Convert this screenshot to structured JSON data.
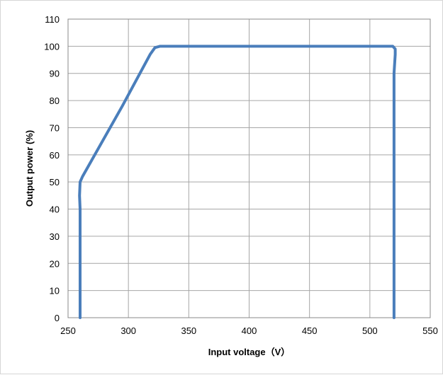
{
  "chart_data": {
    "type": "line",
    "title": "",
    "xlabel": "Input voltage（V）",
    "ylabel": "Output power (%)",
    "xlim": [
      250,
      550
    ],
    "ylim": [
      0,
      110
    ],
    "xticks": [
      250,
      300,
      350,
      400,
      450,
      500,
      550
    ],
    "yticks": [
      0,
      10,
      20,
      30,
      40,
      50,
      60,
      70,
      80,
      90,
      100,
      110
    ],
    "grid": true,
    "legend": "none",
    "series_color": "#4a7ebb",
    "series": [
      {
        "x": [
          260,
          260,
          259.5,
          260,
          262,
          295,
          318,
          322,
          326,
          519,
          521,
          521,
          520,
          520
        ],
        "y": [
          0,
          40,
          45,
          50,
          52,
          78,
          97,
          99.5,
          100,
          100,
          99,
          97,
          90,
          0
        ]
      }
    ]
  }
}
